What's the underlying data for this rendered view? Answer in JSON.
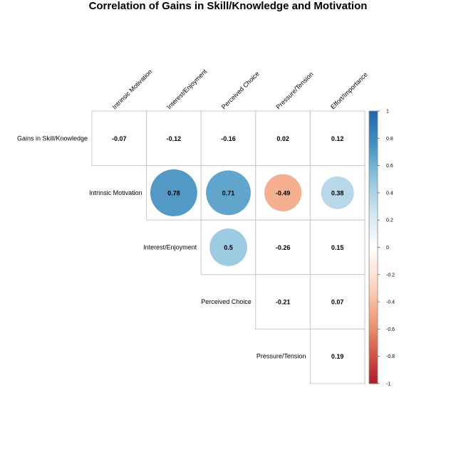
{
  "chart_data": {
    "type": "heatmap",
    "title": "Correlation of Gains in Skill/Knowledge and Motivation",
    "columns": [
      "Intrinsic Motivation",
      "Interest/Enjoyment",
      "Perceived Choice",
      "Pressure/Tension",
      "Effort/Importance"
    ],
    "rows": [
      "Gains in Skill/Knowledge",
      "Intrinsic Motivation",
      "Interest/Enjoyment",
      "Perceived Choice",
      "Pressure/Tension"
    ],
    "values": [
      [
        -0.07,
        -0.12,
        -0.16,
        0.02,
        0.12
      ],
      [
        null,
        0.78,
        0.71,
        -0.49,
        0.38
      ],
      [
        null,
        null,
        0.5,
        -0.26,
        0.15
      ],
      [
        null,
        null,
        null,
        -0.21,
        0.07
      ],
      [
        null,
        null,
        null,
        null,
        0.19
      ]
    ],
    "value_labels": [
      [
        "-0.07",
        "-0.12",
        "-0.16",
        "0.02",
        "0.12"
      ],
      [
        null,
        "0.78",
        "0.71",
        "-0.49",
        "0.38"
      ],
      [
        null,
        null,
        "0.5",
        "-0.26",
        "0.15"
      ],
      [
        null,
        null,
        null,
        "-0.21",
        "0.07"
      ],
      [
        null,
        null,
        null,
        null,
        "0.19"
      ]
    ],
    "significant": [
      [
        false,
        false,
        false,
        false,
        false
      ],
      [
        null,
        true,
        true,
        true,
        true
      ],
      [
        null,
        null,
        true,
        false,
        false
      ],
      [
        null,
        null,
        null,
        false,
        false
      ],
      [
        null,
        null,
        null,
        null,
        false
      ]
    ],
    "colorbar": {
      "range": [
        -1,
        1
      ],
      "ticks": [
        1,
        0.8,
        0.6,
        0.4,
        0.2,
        0,
        -0.2,
        -0.4,
        -0.6,
        -0.8,
        -1
      ],
      "tick_labels": [
        "1",
        "0.8",
        "0.6",
        "0.4",
        "0.2",
        "0",
        "-0.2",
        "-0.4",
        "-0.6",
        "-0.8",
        "-1"
      ],
      "colors": [
        "#b2182b",
        "#d6604d",
        "#f4a582",
        "#fddbc7",
        "#ffffff",
        "#d1e5f0",
        "#92c5de",
        "#4393c3",
        "#2166ac"
      ]
    },
    "xlabel": "",
    "ylabel": ""
  }
}
